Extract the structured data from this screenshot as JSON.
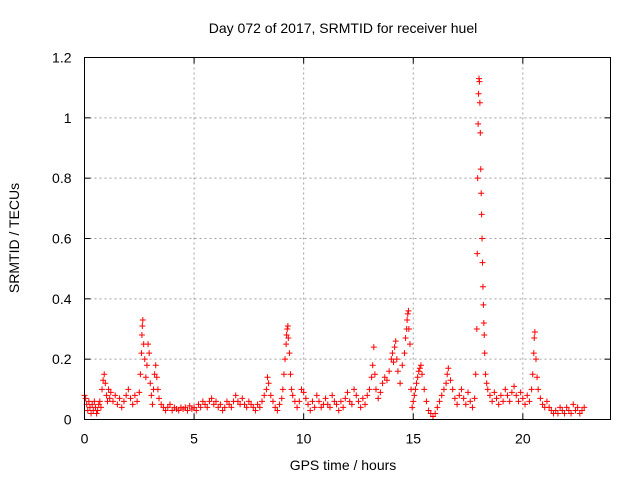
{
  "chart_data": {
    "type": "scatter",
    "title": "Day 072 of 2017, SRMTID for receiver huel",
    "xlabel": "GPS time / hours",
    "ylabel": "SRMTID / TECUs",
    "xlim": [
      0,
      24
    ],
    "ylim": [
      0,
      1.2
    ],
    "xticks": [
      0,
      5,
      10,
      15,
      20
    ],
    "xtick_labels": [
      "0",
      "5",
      "10",
      "15",
      "20"
    ],
    "yticks": [
      0,
      0.2,
      0.4,
      0.6,
      0.8,
      1.0,
      1.2
    ],
    "ytick_labels": [
      "0",
      "0.2",
      "0.4",
      "0.6",
      "0.8",
      "1",
      "1.2"
    ],
    "grid": true,
    "marker": "+",
    "color": "#ff0000",
    "series": [
      {
        "name": "SRMTID",
        "points": [
          [
            0.0,
            0.08
          ],
          [
            0.05,
            0.07
          ],
          [
            0.1,
            0.05
          ],
          [
            0.15,
            0.03
          ],
          [
            0.2,
            0.06
          ],
          [
            0.25,
            0.04
          ],
          [
            0.3,
            0.02
          ],
          [
            0.35,
            0.05
          ],
          [
            0.4,
            0.03
          ],
          [
            0.45,
            0.06
          ],
          [
            0.5,
            0.04
          ],
          [
            0.55,
            0.02
          ],
          [
            0.6,
            0.03
          ],
          [
            0.65,
            0.05
          ],
          [
            0.7,
            0.06
          ],
          [
            0.75,
            0.04
          ],
          [
            0.8,
            0.1
          ],
          [
            0.85,
            0.13
          ],
          [
            0.9,
            0.15
          ],
          [
            0.95,
            0.12
          ],
          [
            1.0,
            0.08
          ],
          [
            1.05,
            0.06
          ],
          [
            1.1,
            0.1
          ],
          [
            1.15,
            0.07
          ],
          [
            1.2,
            0.09
          ],
          [
            1.3,
            0.06
          ],
          [
            1.4,
            0.08
          ],
          [
            1.5,
            0.05
          ],
          [
            1.6,
            0.07
          ],
          [
            1.7,
            0.04
          ],
          [
            1.8,
            0.06
          ],
          [
            1.9,
            0.08
          ],
          [
            2.0,
            0.1
          ],
          [
            2.1,
            0.07
          ],
          [
            2.2,
            0.05
          ],
          [
            2.3,
            0.08
          ],
          [
            2.4,
            0.06
          ],
          [
            2.5,
            0.09
          ],
          [
            2.55,
            0.15
          ],
          [
            2.6,
            0.22
          ],
          [
            2.62,
            0.28
          ],
          [
            2.64,
            0.31
          ],
          [
            2.66,
            0.33
          ],
          [
            2.7,
            0.25
          ],
          [
            2.75,
            0.2
          ],
          [
            2.8,
            0.14
          ],
          [
            2.85,
            0.18
          ],
          [
            2.9,
            0.25
          ],
          [
            2.95,
            0.22
          ],
          [
            3.0,
            0.12
          ],
          [
            3.05,
            0.08
          ],
          [
            3.1,
            0.05
          ],
          [
            3.15,
            0.1
          ],
          [
            3.2,
            0.15
          ],
          [
            3.25,
            0.18
          ],
          [
            3.3,
            0.14
          ],
          [
            3.35,
            0.1
          ],
          [
            3.4,
            0.07
          ],
          [
            3.5,
            0.05
          ],
          [
            3.6,
            0.04
          ],
          [
            3.7,
            0.03
          ],
          [
            3.8,
            0.04
          ],
          [
            3.9,
            0.05
          ],
          [
            4.0,
            0.03
          ],
          [
            4.1,
            0.04
          ],
          [
            4.2,
            0.035
          ],
          [
            4.3,
            0.03
          ],
          [
            4.4,
            0.04
          ],
          [
            4.5,
            0.035
          ],
          [
            4.6,
            0.04
          ],
          [
            4.7,
            0.03
          ],
          [
            4.8,
            0.045
          ],
          [
            4.9,
            0.035
          ],
          [
            5.0,
            0.04
          ],
          [
            5.1,
            0.03
          ],
          [
            5.2,
            0.05
          ],
          [
            5.3,
            0.04
          ],
          [
            5.4,
            0.06
          ],
          [
            5.5,
            0.05
          ],
          [
            5.6,
            0.04
          ],
          [
            5.7,
            0.06
          ],
          [
            5.8,
            0.07
          ],
          [
            5.9,
            0.05
          ],
          [
            6.0,
            0.06
          ],
          [
            6.1,
            0.04
          ],
          [
            6.2,
            0.05
          ],
          [
            6.3,
            0.03
          ],
          [
            6.4,
            0.04
          ],
          [
            6.5,
            0.06
          ],
          [
            6.6,
            0.05
          ],
          [
            6.7,
            0.04
          ],
          [
            6.8,
            0.06
          ],
          [
            6.9,
            0.08
          ],
          [
            7.0,
            0.06
          ],
          [
            7.1,
            0.05
          ],
          [
            7.2,
            0.07
          ],
          [
            7.3,
            0.05
          ],
          [
            7.4,
            0.04
          ],
          [
            7.5,
            0.06
          ],
          [
            7.6,
            0.05
          ],
          [
            7.7,
            0.04
          ],
          [
            7.8,
            0.03
          ],
          [
            7.9,
            0.05
          ],
          [
            8.0,
            0.04
          ],
          [
            8.1,
            0.06
          ],
          [
            8.2,
            0.08
          ],
          [
            8.3,
            0.1
          ],
          [
            8.35,
            0.14
          ],
          [
            8.4,
            0.12
          ],
          [
            8.5,
            0.08
          ],
          [
            8.6,
            0.06
          ],
          [
            8.7,
            0.04
          ],
          [
            8.8,
            0.03
          ],
          [
            8.9,
            0.05
          ],
          [
            9.0,
            0.07
          ],
          [
            9.05,
            0.1
          ],
          [
            9.1,
            0.15
          ],
          [
            9.15,
            0.2
          ],
          [
            9.2,
            0.25
          ],
          [
            9.22,
            0.28
          ],
          [
            9.25,
            0.3
          ],
          [
            9.28,
            0.31
          ],
          [
            9.3,
            0.27
          ],
          [
            9.35,
            0.22
          ],
          [
            9.4,
            0.15
          ],
          [
            9.45,
            0.1
          ],
          [
            9.5,
            0.08
          ],
          [
            9.6,
            0.06
          ],
          [
            9.7,
            0.04
          ],
          [
            9.8,
            0.06
          ],
          [
            9.9,
            0.1
          ],
          [
            10.0,
            0.09
          ],
          [
            10.1,
            0.07
          ],
          [
            10.2,
            0.05
          ],
          [
            10.3,
            0.03
          ],
          [
            10.4,
            0.06
          ],
          [
            10.5,
            0.04
          ],
          [
            10.6,
            0.08
          ],
          [
            10.7,
            0.06
          ],
          [
            10.8,
            0.04
          ],
          [
            10.9,
            0.05
          ],
          [
            11.0,
            0.07
          ],
          [
            11.1,
            0.05
          ],
          [
            11.2,
            0.04
          ],
          [
            11.3,
            0.08
          ],
          [
            11.4,
            0.06
          ],
          [
            11.5,
            0.05
          ],
          [
            11.6,
            0.03
          ],
          [
            11.7,
            0.06
          ],
          [
            11.8,
            0.04
          ],
          [
            11.9,
            0.07
          ],
          [
            12.0,
            0.09
          ],
          [
            12.1,
            0.06
          ],
          [
            12.2,
            0.05
          ],
          [
            12.3,
            0.1
          ],
          [
            12.4,
            0.08
          ],
          [
            12.5,
            0.06
          ],
          [
            12.6,
            0.04
          ],
          [
            12.7,
            0.07
          ],
          [
            12.8,
            0.05
          ],
          [
            12.9,
            0.08
          ],
          [
            13.0,
            0.1
          ],
          [
            13.1,
            0.14
          ],
          [
            13.15,
            0.18
          ],
          [
            13.2,
            0.24
          ],
          [
            13.25,
            0.15
          ],
          [
            13.3,
            0.1
          ],
          [
            13.4,
            0.07
          ],
          [
            13.5,
            0.09
          ],
          [
            13.6,
            0.12
          ],
          [
            13.7,
            0.14
          ],
          [
            13.8,
            0.13
          ],
          [
            13.9,
            0.16
          ],
          [
            14.0,
            0.2
          ],
          [
            14.05,
            0.22
          ],
          [
            14.1,
            0.19
          ],
          [
            14.15,
            0.24
          ],
          [
            14.2,
            0.26
          ],
          [
            14.25,
            0.2
          ],
          [
            14.3,
            0.16
          ],
          [
            14.4,
            0.12
          ],
          [
            14.5,
            0.18
          ],
          [
            14.6,
            0.22
          ],
          [
            14.65,
            0.27
          ],
          [
            14.7,
            0.3
          ],
          [
            14.72,
            0.33
          ],
          [
            14.75,
            0.35
          ],
          [
            14.78,
            0.36
          ],
          [
            14.8,
            0.3
          ],
          [
            14.85,
            0.25
          ],
          [
            14.9,
            0.1
          ],
          [
            14.95,
            0.04
          ],
          [
            15.0,
            0.06
          ],
          [
            15.05,
            0.08
          ],
          [
            15.1,
            0.1
          ],
          [
            15.15,
            0.12
          ],
          [
            15.2,
            0.14
          ],
          [
            15.25,
            0.16
          ],
          [
            15.3,
            0.17
          ],
          [
            15.35,
            0.18
          ],
          [
            15.4,
            0.15
          ],
          [
            15.5,
            0.1
          ],
          [
            15.6,
            0.06
          ],
          [
            15.7,
            0.03
          ],
          [
            15.8,
            0.02
          ],
          [
            15.9,
            0.01
          ],
          [
            16.0,
            0.02
          ],
          [
            16.1,
            0.04
          ],
          [
            16.2,
            0.06
          ],
          [
            16.3,
            0.08
          ],
          [
            16.4,
            0.1
          ],
          [
            16.5,
            0.12
          ],
          [
            16.55,
            0.15
          ],
          [
            16.6,
            0.17
          ],
          [
            16.7,
            0.13
          ],
          [
            16.8,
            0.1
          ],
          [
            16.9,
            0.07
          ],
          [
            17.0,
            0.05
          ],
          [
            17.1,
            0.08
          ],
          [
            17.2,
            0.1
          ],
          [
            17.3,
            0.07
          ],
          [
            17.4,
            0.05
          ],
          [
            17.5,
            0.09
          ],
          [
            17.6,
            0.06
          ],
          [
            17.7,
            0.04
          ],
          [
            17.8,
            0.07
          ],
          [
            17.85,
            0.15
          ],
          [
            17.9,
            0.3
          ],
          [
            17.92,
            0.55
          ],
          [
            17.94,
            0.8
          ],
          [
            17.96,
            0.98
          ],
          [
            17.98,
            1.08
          ],
          [
            18.0,
            1.13
          ],
          [
            18.02,
            1.12
          ],
          [
            18.04,
            1.05
          ],
          [
            18.06,
            0.95
          ],
          [
            18.08,
            0.83
          ],
          [
            18.1,
            0.75
          ],
          [
            18.12,
            0.68
          ],
          [
            18.14,
            0.6
          ],
          [
            18.16,
            0.52
          ],
          [
            18.18,
            0.44
          ],
          [
            18.2,
            0.38
          ],
          [
            18.22,
            0.32
          ],
          [
            18.24,
            0.28
          ],
          [
            18.26,
            0.22
          ],
          [
            18.3,
            0.15
          ],
          [
            18.35,
            0.12
          ],
          [
            18.4,
            0.1
          ],
          [
            18.5,
            0.08
          ],
          [
            18.6,
            0.06
          ],
          [
            18.7,
            0.09
          ],
          [
            18.8,
            0.07
          ],
          [
            18.9,
            0.05
          ],
          [
            19.0,
            0.08
          ],
          [
            19.1,
            0.06
          ],
          [
            19.2,
            0.1
          ],
          [
            19.3,
            0.08
          ],
          [
            19.4,
            0.06
          ],
          [
            19.5,
            0.09
          ],
          [
            19.6,
            0.11
          ],
          [
            19.7,
            0.08
          ],
          [
            19.8,
            0.06
          ],
          [
            19.9,
            0.09
          ],
          [
            20.0,
            0.07
          ],
          [
            20.1,
            0.05
          ],
          [
            20.2,
            0.08
          ],
          [
            20.3,
            0.06
          ],
          [
            20.4,
            0.1
          ],
          [
            20.45,
            0.15
          ],
          [
            20.5,
            0.22
          ],
          [
            20.52,
            0.27
          ],
          [
            20.55,
            0.29
          ],
          [
            20.6,
            0.2
          ],
          [
            20.65,
            0.14
          ],
          [
            20.7,
            0.1
          ],
          [
            20.8,
            0.07
          ],
          [
            20.9,
            0.05
          ],
          [
            21.0,
            0.04
          ],
          [
            21.1,
            0.06
          ],
          [
            21.2,
            0.04
          ],
          [
            21.3,
            0.03
          ],
          [
            21.4,
            0.02
          ],
          [
            21.5,
            0.03
          ],
          [
            21.6,
            0.02
          ],
          [
            21.7,
            0.04
          ],
          [
            21.8,
            0.03
          ],
          [
            21.9,
            0.02
          ],
          [
            22.0,
            0.04
          ],
          [
            22.1,
            0.03
          ],
          [
            22.2,
            0.02
          ],
          [
            22.3,
            0.05
          ],
          [
            22.4,
            0.03
          ],
          [
            22.5,
            0.04
          ],
          [
            22.6,
            0.02
          ],
          [
            22.7,
            0.03
          ],
          [
            22.8,
            0.04
          ]
        ]
      }
    ]
  }
}
